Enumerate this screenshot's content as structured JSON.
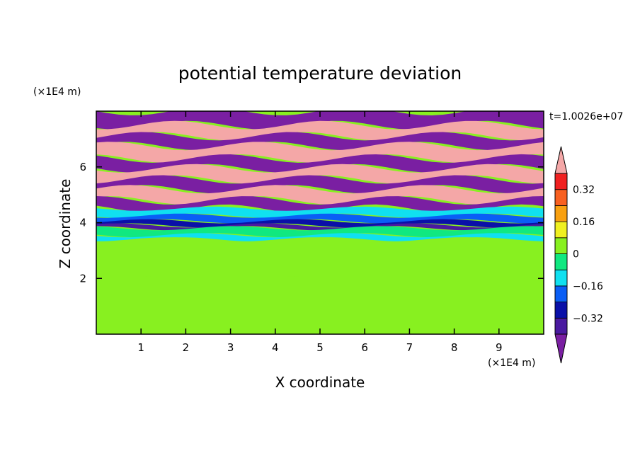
{
  "chart_data": {
    "type": "heatmap",
    "title": "potential temperature deviation",
    "xlabel": "X coordinate",
    "ylabel": "Z coordinate",
    "x_unit": "(×1E4 m)",
    "y_unit": "(×1E4 m)",
    "time_label": "t=1.0026e+07",
    "xlim": [
      0,
      10
    ],
    "ylim": [
      0,
      8
    ],
    "x_ticks": [
      "1",
      "2",
      "3",
      "4",
      "5",
      "6",
      "7",
      "8",
      "9"
    ],
    "y_ticks": [
      "2",
      "4",
      "6"
    ],
    "colorbar": {
      "levels": [
        -0.4,
        -0.32,
        -0.24,
        -0.16,
        -0.08,
        0,
        0.08,
        0.16,
        0.24,
        0.32,
        0.4
      ],
      "tick_labels": [
        "-0.32",
        "-0.16",
        "0",
        "0.16",
        "0.32"
      ],
      "tick_values": [
        -0.32,
        -0.16,
        0,
        0.16,
        0.32
      ],
      "under_color": "#7a1fa2",
      "over_color": "#f4a7a7",
      "colors": [
        "#4a1aa0",
        "#0a10a8",
        "#0a5ef5",
        "#10e0f0",
        "#10e880",
        "#88f020",
        "#f0f020",
        "#f8a010",
        "#f86020",
        "#f02020"
      ]
    },
    "bands": [
      {
        "z": [
          7.5,
          8.0
        ],
        "value": "under"
      },
      {
        "z": [
          7.1,
          7.5
        ],
        "value": "over"
      },
      {
        "z": [
          6.75,
          7.1
        ],
        "value": "under"
      },
      {
        "z": [
          6.3,
          6.75
        ],
        "value": "over"
      },
      {
        "z": [
          5.95,
          6.3
        ],
        "value": "under"
      },
      {
        "z": [
          5.55,
          5.95
        ],
        "value": "over"
      },
      {
        "z": [
          5.2,
          5.55
        ],
        "value": "under"
      },
      {
        "z": [
          4.8,
          5.2
        ],
        "value": "over"
      },
      {
        "z": [
          4.5,
          4.8
        ],
        "value": "under"
      },
      {
        "z": [
          4.25,
          4.5
        ],
        "value": -0.12
      },
      {
        "z": [
          4.05,
          4.25
        ],
        "value": -0.2
      },
      {
        "z": [
          3.9,
          4.05
        ],
        "value": -0.28
      },
      {
        "z": [
          3.8,
          3.9
        ],
        "value": -0.36
      },
      {
        "z": [
          3.55,
          3.8
        ],
        "value": -0.04
      },
      {
        "z": [
          3.4,
          3.55
        ],
        "value": -0.12
      },
      {
        "z": [
          2.0,
          3.4
        ],
        "value": 0.02
      },
      {
        "z": [
          0,
          2.0
        ],
        "value": 0.04
      }
    ]
  }
}
